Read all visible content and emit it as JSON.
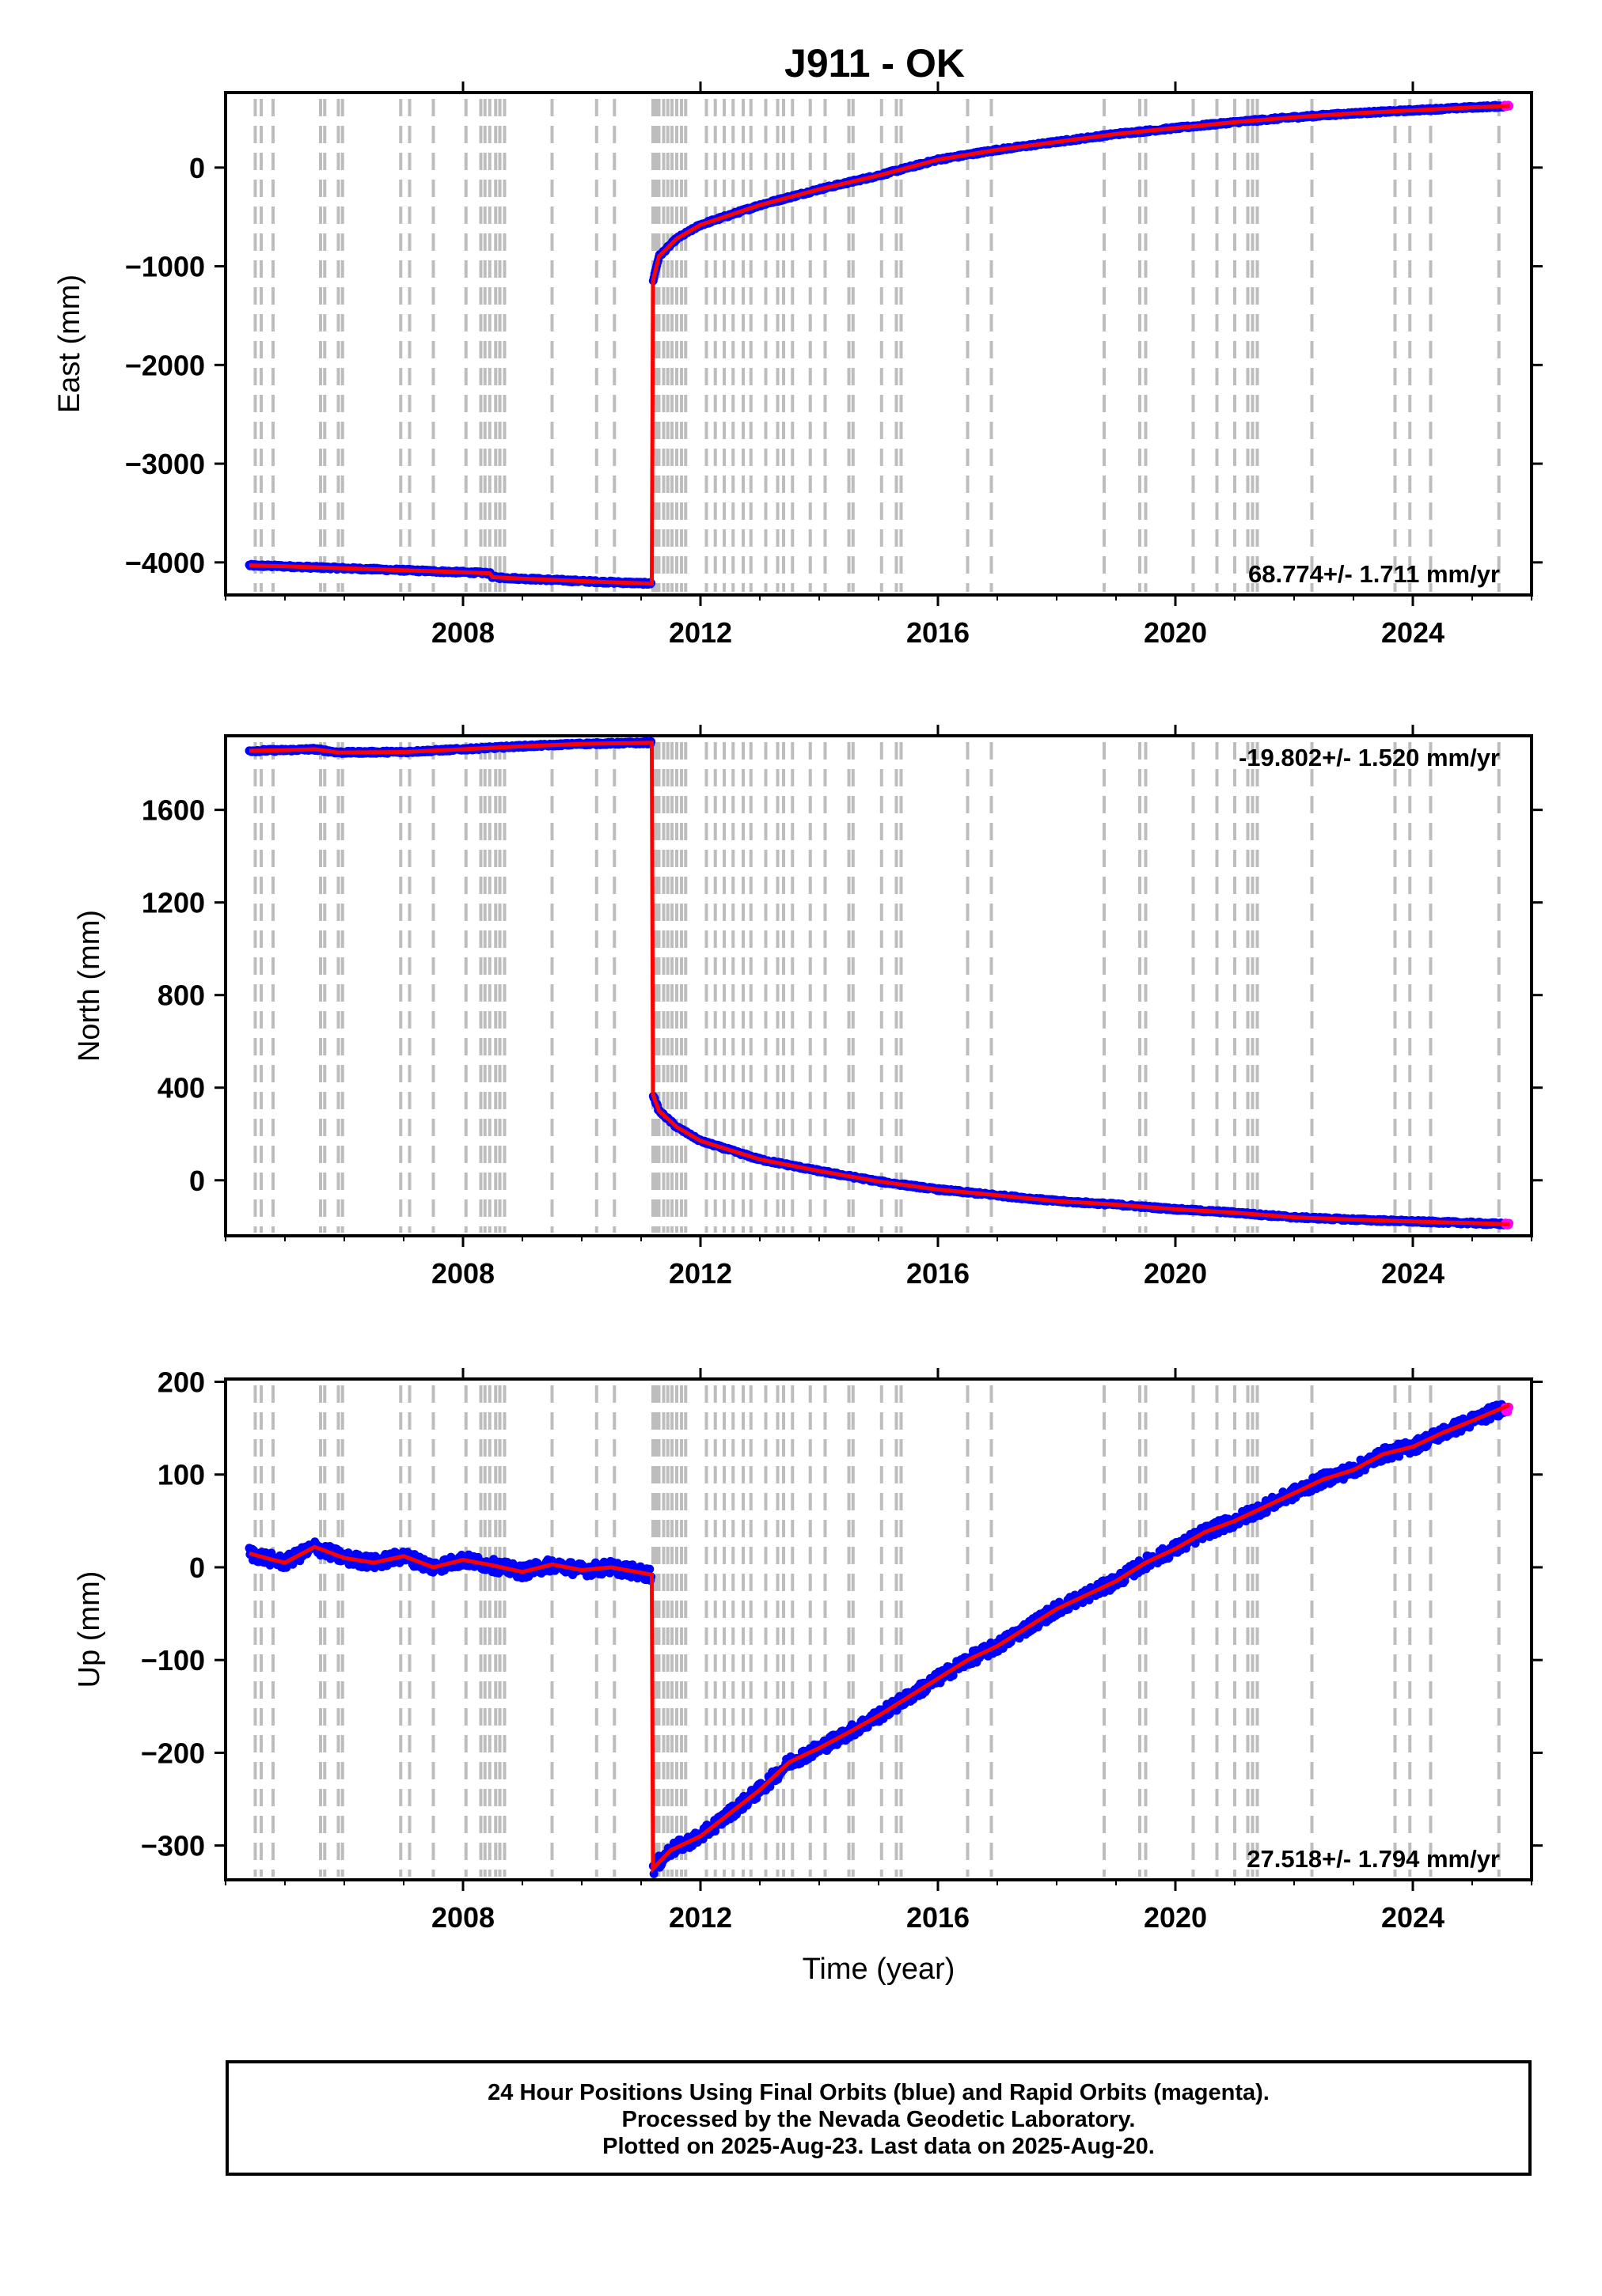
{
  "title": "J911 - OK",
  "colors": {
    "final_orbit": "#0000ff",
    "rapid_orbit": "#ff00ff",
    "model": "#ff0000",
    "event_lines": "#bdbdbd"
  },
  "caption": {
    "line1": "24 Hour Positions Using Final Orbits (blue) and Rapid Orbits (magenta).",
    "line2": "Processed by the Nevada Geodetic Laboratory.",
    "line3": "Plotted on 2025-Aug-23. Last data on 2025-Aug-20."
  },
  "chart_data": [
    {
      "type": "scatter",
      "title": "J911 - OK",
      "xlabel": "",
      "ylabel": "East (mm)",
      "xlim": [
        2004.0,
        2026.0
      ],
      "ylim": [
        -4330,
        760
      ],
      "x_ticks": [
        2008,
        2012,
        2016,
        2020,
        2024
      ],
      "y_ticks": [
        0,
        -1000,
        -2000,
        -3000,
        -4000
      ],
      "rate_label": "68.774+/- 1.711 mm/yr",
      "rate_label_position": "bottom-right",
      "step_epoch": 2011.19,
      "series": [
        {
          "values_description_points": [
            [
              2004.4,
              -4030
            ],
            [
              2005.0,
              -4040
            ],
            [
              2006.0,
              -4060
            ],
            [
              2007.0,
              -4080
            ],
            [
              2008.0,
              -4100
            ],
            [
              2008.45,
              -4110
            ],
            [
              2008.5,
              -4150
            ],
            [
              2009.0,
              -4165
            ],
            [
              2010.0,
              -4190
            ],
            [
              2011.18,
              -4215
            ],
            [
              2011.2,
              -1150
            ],
            [
              2011.3,
              -900
            ],
            [
              2011.6,
              -720
            ],
            [
              2012.0,
              -580
            ],
            [
              2013.0,
              -380
            ],
            [
              2014.0,
              -220
            ],
            [
              2015.0,
              -80
            ],
            [
              2016.0,
              80
            ],
            [
              2017.0,
              180
            ],
            [
              2018.0,
              260
            ],
            [
              2019.0,
              340
            ],
            [
              2020.0,
              400
            ],
            [
              2021.0,
              460
            ],
            [
              2022.0,
              510
            ],
            [
              2023.0,
              550
            ],
            [
              2024.0,
              580
            ],
            [
              2025.0,
              610
            ],
            [
              2025.63,
              625
            ]
          ]
        }
      ]
    },
    {
      "type": "scatter",
      "xlabel": "",
      "ylabel": "North (mm)",
      "xlim": [
        2004.0,
        2026.0
      ],
      "ylim": [
        -240,
        1920
      ],
      "x_ticks": [
        2008,
        2012,
        2016,
        2020,
        2024
      ],
      "y_ticks": [
        0,
        400,
        800,
        1200,
        1600
      ],
      "rate_label": "-19.802+/- 1.520 mm/yr",
      "rate_label_position": "top-right",
      "step_epoch": 2011.19,
      "series": [
        {
          "values_description_points": [
            [
              2004.4,
              1855
            ],
            [
              2005.0,
              1858
            ],
            [
              2005.5,
              1862
            ],
            [
              2005.9,
              1848
            ],
            [
              2007.0,
              1850
            ],
            [
              2008.0,
              1862
            ],
            [
              2009.0,
              1875
            ],
            [
              2010.0,
              1885
            ],
            [
              2011.18,
              1890
            ],
            [
              2011.2,
              370
            ],
            [
              2011.3,
              300
            ],
            [
              2011.6,
              230
            ],
            [
              2012.0,
              170
            ],
            [
              2013.0,
              90
            ],
            [
              2014.0,
              40
            ],
            [
              2015.0,
              -5
            ],
            [
              2016.0,
              -40
            ],
            [
              2017.0,
              -65
            ],
            [
              2018.0,
              -90
            ],
            [
              2019.0,
              -105
            ],
            [
              2020.0,
              -125
            ],
            [
              2021.0,
              -140
            ],
            [
              2022.0,
              -160
            ],
            [
              2023.0,
              -170
            ],
            [
              2024.0,
              -178
            ],
            [
              2025.0,
              -185
            ],
            [
              2025.63,
              -190
            ]
          ]
        }
      ]
    },
    {
      "type": "scatter",
      "xlabel": "Time (year)",
      "ylabel": "Up (mm)",
      "xlim": [
        2004.0,
        2026.0
      ],
      "ylim": [
        -337,
        203
      ],
      "x_ticks": [
        2008,
        2012,
        2016,
        2020,
        2024
      ],
      "y_ticks": [
        200,
        100,
        0,
        -100,
        -200,
        -300
      ],
      "rate_label": "27.518+/- 1.794 mm/yr",
      "rate_label_position": "bottom-right",
      "step_epoch": 2011.19,
      "series": [
        {
          "values_description_points": [
            [
              2004.4,
              15
            ],
            [
              2004.8,
              8
            ],
            [
              2005.0,
              5
            ],
            [
              2005.5,
              22
            ],
            [
              2006.0,
              10
            ],
            [
              2006.5,
              5
            ],
            [
              2007.0,
              12
            ],
            [
              2007.5,
              0
            ],
            [
              2008.0,
              8
            ],
            [
              2008.5,
              2
            ],
            [
              2009.0,
              -5
            ],
            [
              2009.5,
              3
            ],
            [
              2010.0,
              -3
            ],
            [
              2010.5,
              0
            ],
            [
              2011.18,
              -8
            ],
            [
              2011.2,
              -325
            ],
            [
              2011.5,
              -305
            ],
            [
              2012.0,
              -290
            ],
            [
              2012.5,
              -265
            ],
            [
              2013.0,
              -240
            ],
            [
              2013.5,
              -210
            ],
            [
              2014.0,
              -195
            ],
            [
              2014.5,
              -178
            ],
            [
              2015.0,
              -160
            ],
            [
              2015.5,
              -140
            ],
            [
              2016.0,
              -120
            ],
            [
              2016.5,
              -100
            ],
            [
              2017.0,
              -85
            ],
            [
              2017.5,
              -65
            ],
            [
              2018.0,
              -45
            ],
            [
              2018.5,
              -30
            ],
            [
              2019.0,
              -15
            ],
            [
              2019.5,
              5
            ],
            [
              2020.0,
              20
            ],
            [
              2020.5,
              38
            ],
            [
              2021.0,
              50
            ],
            [
              2021.5,
              65
            ],
            [
              2022.0,
              80
            ],
            [
              2022.5,
              95
            ],
            [
              2023.0,
              105
            ],
            [
              2023.5,
              122
            ],
            [
              2024.0,
              130
            ],
            [
              2024.5,
              145
            ],
            [
              2025.0,
              158
            ],
            [
              2025.63,
              175
            ]
          ]
        }
      ]
    }
  ],
  "event_epochs": [
    2004.5,
    2004.6,
    2004.8,
    2005.6,
    2005.67,
    2005.9,
    2005.97,
    2006.95,
    2007.1,
    2007.5,
    2008.05,
    2008.3,
    2008.37,
    2008.45,
    2008.55,
    2008.62,
    2008.7,
    2009.5,
    2010.25,
    2010.55,
    2011.2,
    2011.25,
    2011.3,
    2011.38,
    2011.45,
    2011.52,
    2011.6,
    2011.68,
    2011.75,
    2012.1,
    2012.25,
    2012.4,
    2012.55,
    2012.72,
    2012.85,
    2013.1,
    2013.3,
    2013.4,
    2013.55,
    2013.85,
    2014.1,
    2014.5,
    2014.57,
    2015.05,
    2015.3,
    2015.38,
    2016.5,
    2016.9,
    2018.8,
    2019.4,
    2019.5,
    2020.3,
    2020.7,
    2021.0,
    2021.22,
    2021.3,
    2021.38,
    2022.3,
    2023.7,
    2023.95,
    2024.3,
    2025.45
  ]
}
